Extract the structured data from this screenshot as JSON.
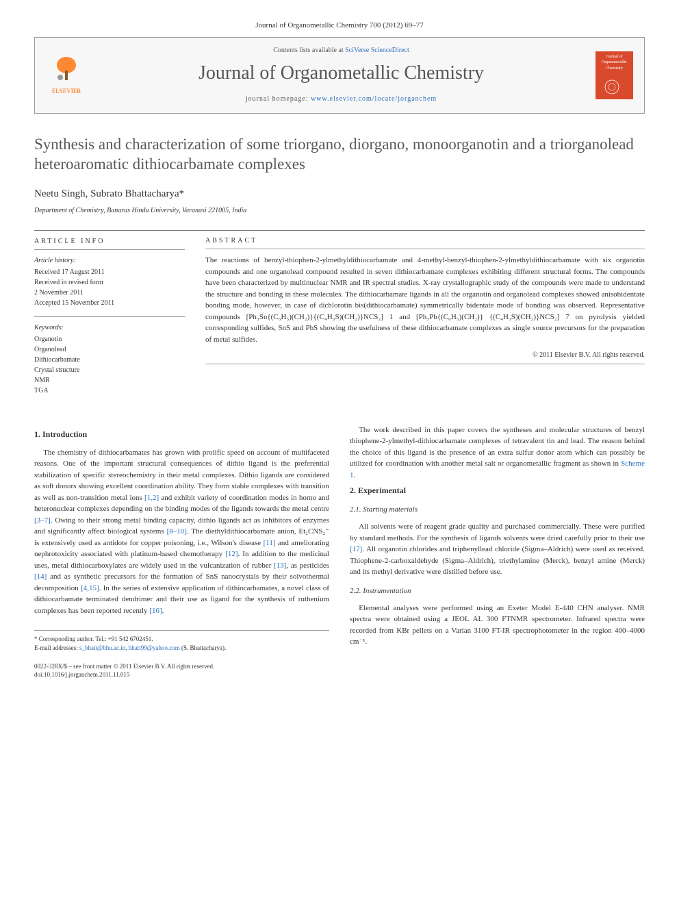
{
  "journal_ref": "Journal of Organometallic Chemistry 700 (2012) 69–77",
  "header": {
    "contents_prefix": "Contents lists available at ",
    "contents_link": "SciVerse ScienceDirect",
    "journal_name": "Journal of Organometallic Chemistry",
    "homepage_prefix": "journal homepage: ",
    "homepage_url": "www.elsevier.com/locate/jorganchem",
    "publisher_label": "ELSEVIER",
    "cover_title": "Journal of Organometallic Chemistry"
  },
  "title": "Synthesis and characterization of some triorgano, diorgano, monoorganotin and a triorganolead heteroaromatic dithiocarbamate complexes",
  "authors": "Neetu Singh, Subrato Bhattacharya*",
  "affiliation": "Department of Chemistry, Banaras Hindu University, Varanasi 221005, India",
  "article_info": {
    "label": "ARTICLE INFO",
    "history_label": "Article history:",
    "history": [
      "Received 17 August 2011",
      "Received in revised form",
      "2 November 2011",
      "Accepted 15 November 2011"
    ],
    "keywords_label": "Keywords:",
    "keywords": [
      "Organotin",
      "Organolead",
      "Dithiocarbamate",
      "Crystal structure",
      "NMR",
      "TGA"
    ]
  },
  "abstract": {
    "label": "ABSTRACT",
    "text": "The reactions of benzyl-thiophen-2-ylmethyldithiocarbamate and 4-methyl-benzyl-thiophen-2-ylmethyldithiocarbamate with six organotin compounds and one organolead compound resulted in seven dithiocarbamate complexes exhibiting different structural forms. The compounds have been characterized by multinuclear NMR and IR spectral studies. X-ray crystallographic study of the compounds were made to understand the structure and bonding in these molecules. The dithiocarbamate ligands in all the organotin and organolead complexes showed anisobidentate bonding mode, however, in case of dichlorotin bis(dithiocarbamate) symmetrically bidentate mode of bonding was observed. Representative compounds [Ph₃Sn{(C₆H₅)(CH₂)}{(C₄H₃S)(CH₂)}NCS₂] 1 and [Ph₃Pb{(C₆H₅)(CH₂)} {(C₄H₃S)(CH₂)}NCS₂] 7 on pyrolysis yielded corresponding sulfides, SnS and PbS showing the usefulness of these dithiocarbamate complexes as single source precursors for the preparation of metal sulfides.",
    "copyright": "© 2011 Elsevier B.V. All rights reserved."
  },
  "sections": {
    "intro_heading": "1. Introduction",
    "intro_p1": "The chemistry of dithiocarbamates has grown with prolific speed on account of multifaceted reasons. One of the important structural consequences of dithio ligand is the preferential stabilization of specific stereochemistry in their metal complexes. Dithio ligands are considered as soft donors showing excellent coordination ability. They form stable complexes with transition as well as non-transition metal ions [1,2] and exhibit variety of coordination modes in homo and heteronuclear complexes depending on the binding modes of the ligands towards the metal centre [3–7]. Owing to their strong metal binding capacity, dithio ligands act as inhibitors of enzymes and significantly affect biological systems [8–10]. The diethyldithiocarbamate anion, Et₂CNS₂⁻ is extensively used as antidote for copper poisoning, i.e., Wilson's disease [11] and ameliorating nephrotoxicity associated with platinum-based chemotherapy [12]. In addition to the medicinal uses, metal dithiocarboxylates are widely used in the vulcanization of rubber [13], as pesticides [14] and as synthetic precursors for the formation of SnS nanocrystals by their solvothermal decomposition [4,15]. In the series of extensive application of dithiocarbamates, a novel class of dithiocarbamate terminated dendrimer and their use as ligand for the synthesis of ruthenium complexes has been reported recently [16].",
    "intro_p2": "The work described in this paper covers the syntheses and molecular structures of benzyl thiophene-2-ylmethyl-dithiocarbamate complexes of tetravalent tin and lead. The reason behind the choice of this ligand is the presence of an extra sulfur donor atom which can possibly be utilized for coordination with another metal salt or organometallic fragment as shown in Scheme 1.",
    "exp_heading": "2. Experimental",
    "sub21_heading": "2.1. Starting materials",
    "sub21_text": "All solvents were of reagent grade quality and purchased commercially. These were purified by standard methods. For the synthesis of ligands solvents were dried carefully prior to their use [17]. All organotin chlorides and triphenyllead chloride (Sigma–Aldrich) were used as received. Thiophene-2-carboxaldehyde (Sigma–Aldrich), triethylamine (Merck), benzyl amine (Merck) and its methyl derivative were distilled before use.",
    "sub22_heading": "2.2. Instrumentation",
    "sub22_text": "Elemental analyses were performed using an Exeter Model E-440 CHN analyser. NMR spectra were obtained using a JEOL AL 300 FTNMR spectrometer. Infrared spectra were recorded from KBr pellets on a Varian 3100 FT-IR spectrophotometer in the region 400–4000 cm⁻¹."
  },
  "footer": {
    "corr_label": "* Corresponding author. Tel.: +91 542 6702451.",
    "email_label": "E-mail addresses: ",
    "email1": "s_bhatt@bhu.ac.in",
    "email2": "bhatt99@yahoo.com",
    "email_suffix": " (S. Bhattacharya).",
    "issn": "0022-328X/$ – see front matter © 2011 Elsevier B.V. All rights reserved.",
    "doi": "doi:10.1016/j.jorganchem.2011.11.015"
  },
  "colors": {
    "link": "#2a6ebb",
    "publisher": "#ff6600",
    "cover_bg": "#d94a2c",
    "title_color": "#585858"
  }
}
